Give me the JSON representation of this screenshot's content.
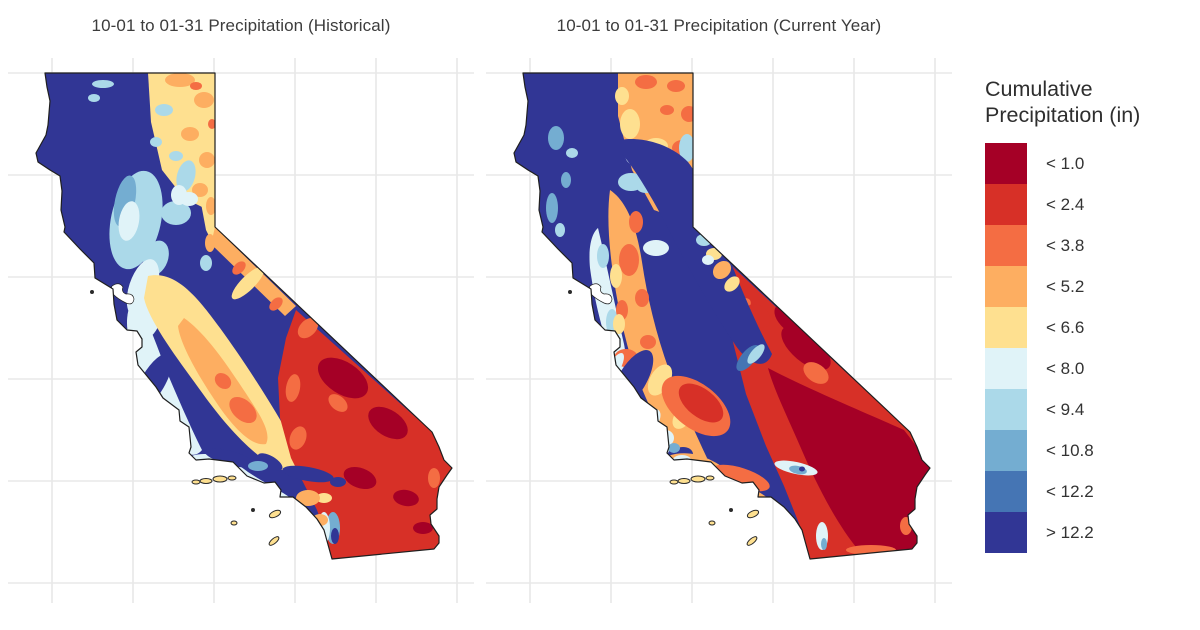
{
  "figure": {
    "region": "California",
    "panels": [
      {
        "title": "10-01 to 01-31 Precipitation (Historical)"
      },
      {
        "title": "10-01 to 01-31 Precipitation (Current Year)"
      }
    ]
  },
  "legend": {
    "title_lines": [
      "Cumulative",
      "Precipitation (in)"
    ],
    "items": [
      {
        "label": "< 1.0",
        "color": "#a50026"
      },
      {
        "label": "< 2.4",
        "color": "#d73027"
      },
      {
        "label": "< 3.8",
        "color": "#f46d43"
      },
      {
        "label": "< 5.2",
        "color": "#fdae61"
      },
      {
        "label": "< 6.6",
        "color": "#fee090"
      },
      {
        "label": "< 8.0",
        "color": "#e0f3f8"
      },
      {
        "label": "< 9.4",
        "color": "#abd9e9"
      },
      {
        "label": "< 10.8",
        "color": "#74add1"
      },
      {
        "label": "< 12.2",
        "color": "#4575b4"
      },
      {
        "label": "> 12.2",
        "color": "#313695"
      }
    ]
  }
}
